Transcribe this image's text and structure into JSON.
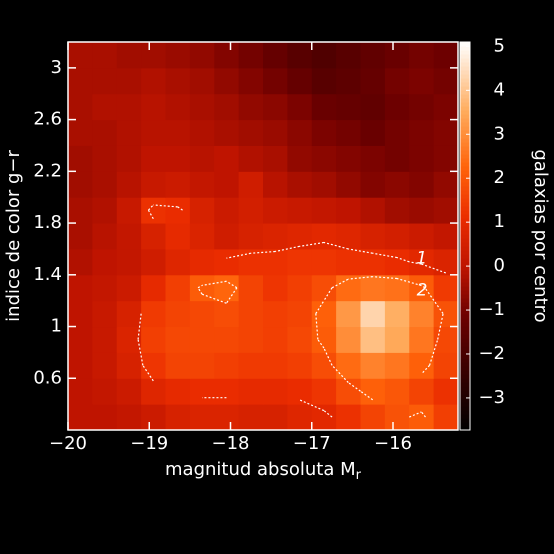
{
  "chart_data": {
    "type": "heatmap",
    "x_label": {
      "text": "magnitud absoluta M",
      "subscript": "r"
    },
    "y_label": "indice de color g−r",
    "colorbar_label": "galaxias por centro",
    "xlim": [
      -20,
      -15.2
    ],
    "ylim": [
      0.2,
      3.2
    ],
    "clim": [
      -3.73,
      5.1
    ],
    "xticks": [
      {
        "value": -20,
        "label": "−20"
      },
      {
        "value": -19,
        "label": "−19"
      },
      {
        "value": -18,
        "label": "−18"
      },
      {
        "value": -17,
        "label": "−17"
      },
      {
        "value": -16,
        "label": "−16"
      }
    ],
    "yticks": [
      0.6,
      1.0,
      1.4,
      1.8,
      2.2,
      2.6,
      3.0
    ],
    "cticks": [
      {
        "value": -3,
        "label": "−3"
      },
      {
        "value": -2,
        "label": "−2"
      },
      {
        "value": -1,
        "label": "−1"
      },
      0,
      1,
      2,
      3,
      4,
      5
    ],
    "x": [
      -19.85,
      -19.55,
      -19.25,
      -18.95,
      -18.65,
      -18.35,
      -18.05,
      -17.75,
      -17.45,
      -17.15,
      -16.85,
      -16.55,
      -16.25,
      -15.95,
      -15.65,
      -15.35
    ],
    "y": [
      0.3,
      0.5,
      0.7,
      0.9,
      1.1,
      1.3,
      1.5,
      1.7,
      1.9,
      2.1,
      2.3,
      2.5,
      2.7,
      2.9,
      3.1
    ],
    "z": [
      [
        0,
        0,
        0.1,
        0.3,
        0.6,
        0.7,
        0.7,
        0.6,
        0.6,
        0.8,
        0.9,
        1.2,
        1.6,
        1.9,
        2.1,
        1.5
      ],
      [
        0,
        0.1,
        0.3,
        0.8,
        1.0,
        1.1,
        1.1,
        1.0,
        1.0,
        1.1,
        1.3,
        1.8,
        2.2,
        2.0,
        1.6,
        1.2
      ],
      [
        0,
        0.2,
        0.6,
        1.3,
        1.6,
        1.6,
        1.5,
        1.4,
        1.4,
        1.5,
        1.8,
        2.4,
        2.8,
        2.6,
        2.2,
        1.6
      ],
      [
        0,
        0.2,
        0.7,
        1.5,
        1.7,
        1.7,
        1.7,
        1.6,
        1.5,
        1.7,
        2.1,
        3.0,
        3.9,
        3.5,
        2.6,
        1.7
      ],
      [
        0,
        0.2,
        0.6,
        1.4,
        1.6,
        1.7,
        1.8,
        1.6,
        1.5,
        1.6,
        2.2,
        3.2,
        4.3,
        3.6,
        2.8,
        1.9
      ],
      [
        0,
        0.1,
        0.3,
        1.0,
        1.5,
        2.1,
        2.3,
        1.6,
        1.3,
        1.5,
        1.8,
        2.4,
        2.6,
        2.5,
        2.1,
        1.4
      ],
      [
        -0.2,
        0,
        0.1,
        0.4,
        0.8,
        1.0,
        1.1,
        1.2,
        1.2,
        1.3,
        1.3,
        1.2,
        1.2,
        1.1,
        0.9,
        0.7
      ],
      [
        -0.3,
        -0.1,
        0.1,
        0.6,
        1.0,
        0.7,
        0.4,
        0.6,
        0.7,
        0.8,
        0.9,
        0.8,
        0.6,
        0.5,
        0.3,
        0.1
      ],
      [
        -0.3,
        -0.2,
        0.2,
        1.2,
        1.1,
        0.6,
        0.3,
        0.5,
        0.3,
        0.2,
        0.1,
        0,
        -0.2,
        -0.4,
        -0.5,
        -0.4
      ],
      [
        -0.4,
        -0.3,
        -0.1,
        0.2,
        0.3,
        0.1,
        0,
        0.4,
        -0.1,
        -0.3,
        -0.4,
        -0.6,
        -0.8,
        -0.7,
        -0.8,
        -0.6
      ],
      [
        -0.4,
        -0.3,
        -0.2,
        0,
        0,
        -0.1,
        0,
        -0.2,
        -0.3,
        -0.6,
        -0.7,
        -0.8,
        -0.9,
        -1.0,
        -0.9,
        -0.8
      ],
      [
        -0.3,
        -0.3,
        -0.2,
        -0.1,
        -0.1,
        -0.2,
        -0.3,
        -0.4,
        -0.5,
        -0.7,
        -0.9,
        -1.0,
        -1.2,
        -1.0,
        -0.9,
        -0.8
      ],
      [
        -0.3,
        -0.2,
        -0.2,
        -0.1,
        -0.2,
        -0.3,
        -0.4,
        -0.6,
        -0.7,
        -0.9,
        -1.2,
        -1.3,
        -1.4,
        -1.1,
        -1.0,
        -0.9
      ],
      [
        -0.3,
        -0.3,
        -0.3,
        -0.2,
        -0.3,
        -0.4,
        -0.6,
        -0.8,
        -1.0,
        -1.3,
        -1.6,
        -1.5,
        -1.3,
        -1.0,
        -0.9,
        -1.0
      ],
      [
        -0.3,
        -0.3,
        -0.4,
        -0.4,
        -0.5,
        -0.6,
        -0.8,
        -1.0,
        -1.3,
        -1.6,
        -1.8,
        -1.6,
        -1.4,
        -1.2,
        -1.0,
        -1.1
      ]
    ],
    "contour_levels": [
      {
        "value": 1,
        "label": "1"
      },
      {
        "value": 2,
        "label": "2"
      }
    ]
  }
}
